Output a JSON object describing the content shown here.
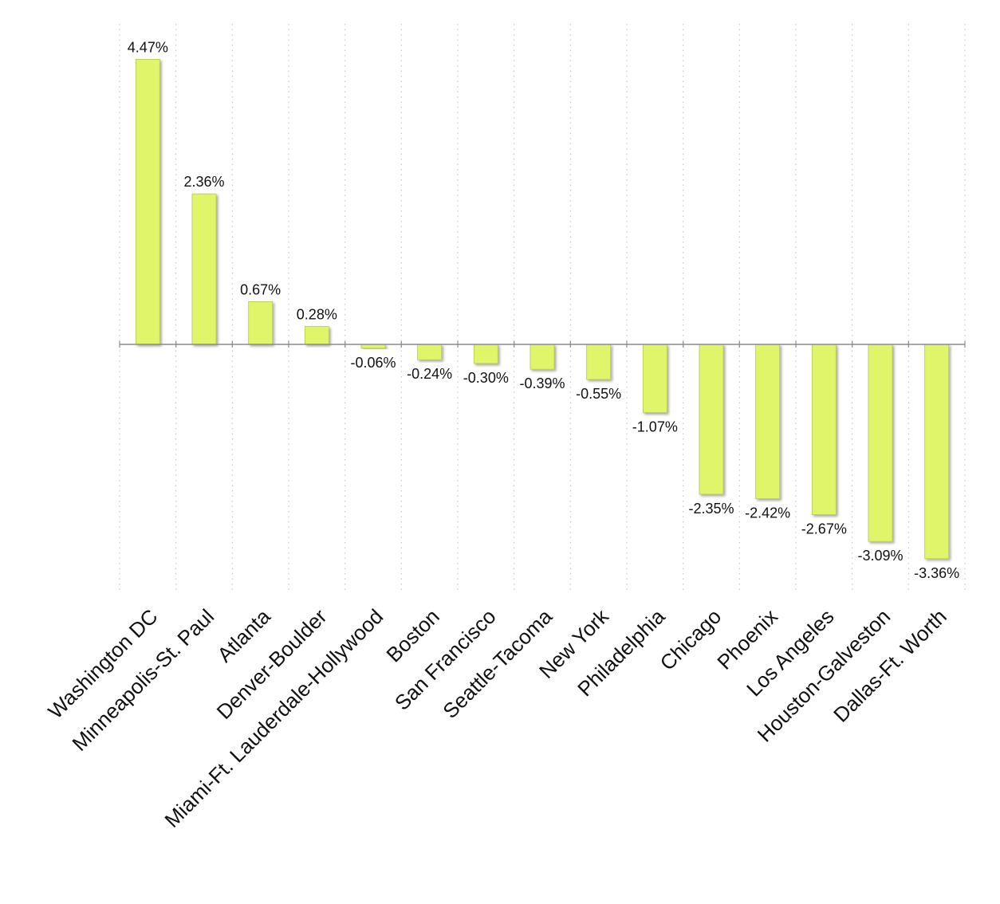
{
  "chart_data": {
    "type": "bar",
    "categories": [
      "Washington DC",
      "Minneapolis-St. Paul",
      "Atlanta",
      "Denver-Boulder",
      "Miami-Ft. Lauderdale-Hollywood",
      "Boston",
      "San Francisco",
      "Seattle-Tacoma",
      "New York",
      "Philadelphia",
      "Chicago",
      "Phoenix",
      "Los Angeles",
      "Houston-Galveston",
      "Dallas-Ft. Worth"
    ],
    "values": [
      4.47,
      2.36,
      0.67,
      0.28,
      -0.06,
      -0.24,
      -0.3,
      -0.39,
      -0.55,
      -1.07,
      -2.35,
      -2.42,
      -2.67,
      -3.09,
      -3.36
    ],
    "data_labels": [
      "4.47%",
      "2.36%",
      "0.67%",
      "0.28%",
      "-0.06%",
      "-0.24%",
      "-0.30%",
      "-0.39%",
      "-0.55%",
      "-1.07%",
      "-2.35%",
      "-2.42%",
      "-2.67%",
      "-3.09%",
      "-3.36%"
    ],
    "title": "",
    "xlabel": "",
    "ylabel": "",
    "ylim": [
      -3.95,
      4.85
    ],
    "grid": "vertical dotted",
    "legend": "none",
    "bar_color": "#e1f56b",
    "bar_border_color": "#b9c84e"
  }
}
